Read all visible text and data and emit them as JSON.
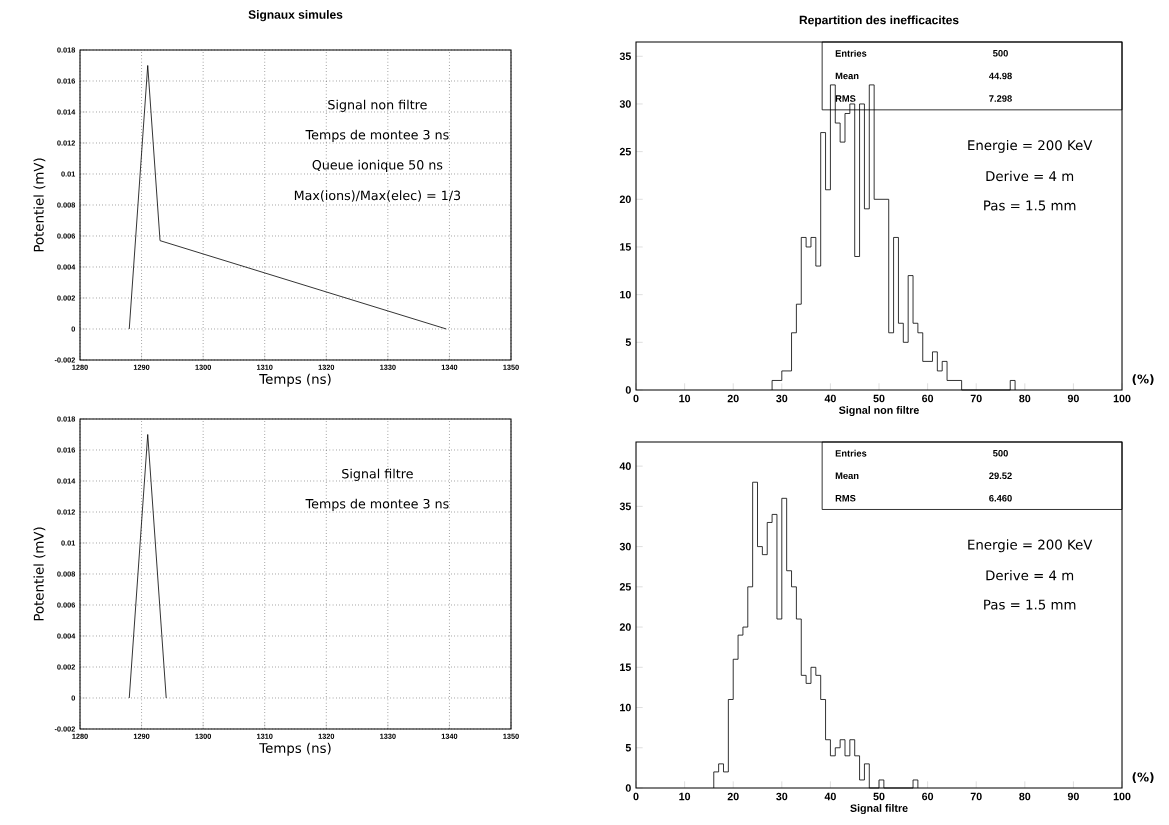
{
  "chart_data": [
    {
      "type": "line",
      "title": "Signaux simules",
      "xlabel": "Temps (ns)",
      "ylabel": "Potentiel (mV)",
      "xlim": [
        1280,
        1350
      ],
      "ylim": [
        -0.002,
        0.018
      ],
      "xticks": [
        1280,
        1290,
        1300,
        1310,
        1320,
        1330,
        1340,
        1350
      ],
      "yticks": [
        -0.002,
        0,
        0.002,
        0.004,
        0.006,
        0.008,
        0.01,
        0.012,
        0.014,
        0.016,
        0.018
      ],
      "grid": true,
      "marker": "none",
      "x": [
        1288,
        1291,
        1293,
        1339.5
      ],
      "values": [
        0,
        0.017,
        0.0057,
        0
      ],
      "color": "#000000",
      "annotations": [
        "Signal non filtre",
        "Temps de montee 3 ns",
        "Queue ionique 50 ns",
        "Max(ions)/Max(elec) = 1/3"
      ]
    },
    {
      "type": "histogram",
      "title": "Repartition des inefficacites",
      "xlabel": "Signal non filtre",
      "xlim": [
        0,
        100
      ],
      "ylim": [
        0,
        36.5
      ],
      "xticks": [
        0,
        10,
        20,
        30,
        40,
        50,
        60,
        70,
        80,
        90,
        100
      ],
      "yticks": [
        0,
        5,
        10,
        15,
        20,
        25,
        30,
        35
      ],
      "color": "#000000",
      "bins": [
        28,
        29,
        30,
        31,
        32,
        33,
        34,
        35,
        36,
        37,
        38,
        39,
        40,
        41,
        42,
        43,
        44,
        45,
        46,
        47,
        48,
        49,
        50,
        51,
        52,
        53,
        54,
        55,
        56,
        57,
        58,
        59,
        60,
        61,
        62,
        63,
        64,
        65,
        66,
        67,
        68,
        69,
        70,
        71,
        72,
        73,
        74,
        75,
        76,
        77,
        78
      ],
      "values": [
        1,
        1,
        2,
        2,
        6,
        9,
        16,
        15,
        16,
        13,
        27,
        21,
        32,
        28,
        26,
        29,
        30,
        14,
        30,
        19,
        32,
        20,
        20,
        20,
        6,
        16,
        7,
        5,
        12,
        7,
        6,
        3,
        3,
        4,
        2,
        3,
        1,
        1,
        1,
        0,
        0,
        0,
        0,
        0,
        0,
        0,
        0,
        0,
        0,
        1
      ],
      "annotations": [
        "Entries",
        "500",
        "Mean",
        "44.98",
        "RMS",
        "7.298",
        "Energie = 200 KeV",
        "Derive = 4 m",
        "Pas = 1.5 mm",
        "(%)"
      ]
    },
    {
      "type": "line",
      "xlabel": "Temps (ns)",
      "ylabel": "Potentiel (mV)",
      "xlim": [
        1280,
        1350
      ],
      "ylim": [
        -0.002,
        0.018
      ],
      "xticks": [
        1280,
        1290,
        1300,
        1310,
        1320,
        1330,
        1340,
        1350
      ],
      "yticks": [
        -0.002,
        0,
        0.002,
        0.004,
        0.006,
        0.008,
        0.01,
        0.012,
        0.014,
        0.016,
        0.018
      ],
      "grid": true,
      "marker": "none",
      "x": [
        1288,
        1291,
        1294
      ],
      "values": [
        0,
        0.017,
        0
      ],
      "color": "#000000",
      "annotations": [
        "Signal filtre",
        "Temps de montee 3 ns"
      ]
    },
    {
      "type": "histogram",
      "xlabel": "Signal filtre",
      "xlim": [
        0,
        100
      ],
      "ylim": [
        0,
        43
      ],
      "xticks": [
        0,
        10,
        20,
        30,
        40,
        50,
        60,
        70,
        80,
        90,
        100
      ],
      "yticks": [
        0,
        5,
        10,
        15,
        20,
        25,
        30,
        35,
        40
      ],
      "color": "#000000",
      "bins": [
        16,
        17,
        18,
        19,
        20,
        21,
        22,
        23,
        24,
        25,
        26,
        27,
        28,
        29,
        30,
        31,
        32,
        33,
        34,
        35,
        36,
        37,
        38,
        39,
        40,
        41,
        42,
        43,
        44,
        45,
        46,
        47,
        48,
        49,
        50,
        51,
        52,
        53,
        54,
        55,
        56,
        57,
        58
      ],
      "values": [
        2,
        3,
        2,
        11,
        16,
        19,
        20,
        25,
        38,
        30,
        29,
        33,
        34,
        21,
        36,
        27,
        25,
        21,
        14,
        13,
        15,
        14,
        11,
        6,
        4,
        5,
        6,
        4,
        6,
        4,
        1,
        3,
        0,
        0,
        1,
        0,
        0,
        0,
        0,
        0,
        0,
        1
      ],
      "annotations": [
        "Entries",
        "500",
        "Mean",
        "29.52",
        "RMS",
        "6.460",
        "Energie = 200 KeV",
        "Derive = 4 m",
        "Pas = 1.5 mm",
        "(%)"
      ]
    }
  ]
}
